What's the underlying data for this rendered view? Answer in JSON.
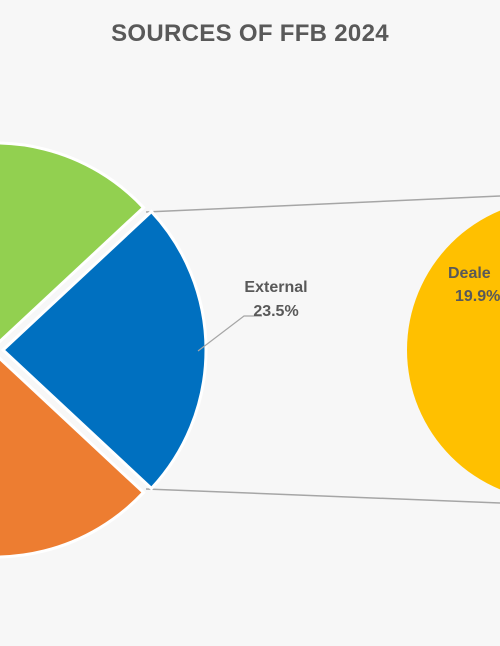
{
  "chart_data": {
    "type": "pie",
    "title": "SOURCES OF FFB 2024",
    "slices": [
      {
        "label": "External",
        "value": 23.5,
        "value_label": "23.5%",
        "color": "#0070C0"
      },
      {
        "label": "",
        "value": null,
        "value_label": "",
        "color": "#ED7D31"
      },
      {
        "label": "",
        "value": null,
        "value_label": "",
        "color": "#92D050"
      }
    ],
    "secondary_pie": {
      "slices": [
        {
          "label": "Deale",
          "value": 19.9,
          "value_label": "19.9%",
          "color": "#FFC000"
        }
      ]
    },
    "connector_color": "#A6A6A6"
  }
}
